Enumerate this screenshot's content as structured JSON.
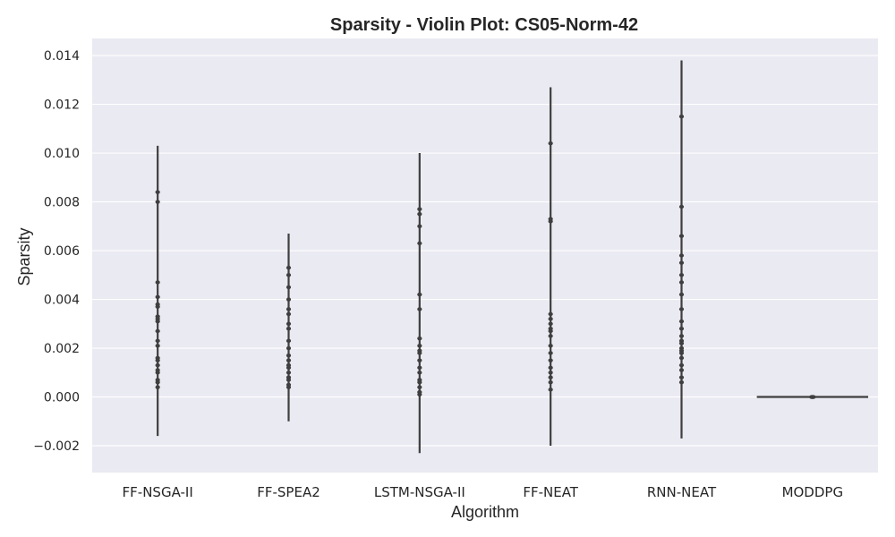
{
  "chart_data": {
    "type": "violin",
    "title": "Sparsity - Violin Plot: CS05-Norm-42",
    "xlabel": "Algorithm",
    "ylabel": "Sparsity",
    "ylim": [
      -0.0031,
      0.0147
    ],
    "yticks": [
      -0.002,
      0.0,
      0.002,
      0.004,
      0.006,
      0.008,
      0.01,
      0.012,
      0.014
    ],
    "ytick_labels": [
      "−0.002",
      "0.000",
      "0.002",
      "0.004",
      "0.006",
      "0.008",
      "0.010",
      "0.012",
      "0.014"
    ],
    "grid": true,
    "background_color": "#eaeaf2",
    "line_color": "#3f3f3f",
    "categories": [
      "FF-NSGA-II",
      "FF-SPEA2",
      "LSTM-NSGA-II",
      "FF-NEAT",
      "RNN-NEAT",
      "MODDPG"
    ],
    "series": [
      {
        "category": "FF-NSGA-II",
        "extent": [
          -0.0016,
          0.0103
        ],
        "points": [
          0.0084,
          0.008,
          0.0047,
          0.0041,
          0.0038,
          0.0037,
          0.0033,
          0.0032,
          0.0031,
          0.0027,
          0.0023,
          0.0021,
          0.0016,
          0.0015,
          0.0013,
          0.0011,
          0.001,
          0.0007,
          0.0006,
          0.0004
        ]
      },
      {
        "category": "FF-SPEA2",
        "extent": [
          -0.001,
          0.0067
        ],
        "points": [
          0.0053,
          0.005,
          0.0045,
          0.004,
          0.0036,
          0.0034,
          0.003,
          0.0028,
          0.0023,
          0.002,
          0.0017,
          0.0015,
          0.0013,
          0.0012,
          0.001,
          0.0008,
          0.0007,
          0.0005,
          0.0004
        ]
      },
      {
        "category": "LSTM-NSGA-II",
        "extent": [
          -0.0023,
          0.01
        ],
        "points": [
          0.0077,
          0.0075,
          0.007,
          0.0063,
          0.0042,
          0.0036,
          0.0024,
          0.0021,
          0.0019,
          0.0018,
          0.0015,
          0.0012,
          0.001,
          0.0007,
          0.0006,
          0.0004,
          0.0002,
          0.0001
        ]
      },
      {
        "category": "FF-NEAT",
        "extent": [
          -0.002,
          0.0127
        ],
        "points": [
          0.0104,
          0.0073,
          0.0072,
          0.0034,
          0.0032,
          0.003,
          0.0028,
          0.0027,
          0.0025,
          0.0021,
          0.0018,
          0.0015,
          0.0012,
          0.001,
          0.0008,
          0.0006,
          0.0003
        ]
      },
      {
        "category": "RNN-NEAT",
        "extent": [
          -0.0017,
          0.0138
        ],
        "points": [
          0.0115,
          0.0078,
          0.0066,
          0.0058,
          0.0055,
          0.005,
          0.0047,
          0.0042,
          0.0036,
          0.0031,
          0.0028,
          0.0025,
          0.0023,
          0.0022,
          0.002,
          0.0019,
          0.0018,
          0.0016,
          0.0013,
          0.0011,
          0.0008,
          0.0006
        ]
      },
      {
        "category": "MODDPG",
        "extent": [
          0.0,
          0.0
        ],
        "points": [
          0.0,
          0.0,
          0.0
        ],
        "horizontal_span_fraction": 0.85
      }
    ]
  }
}
